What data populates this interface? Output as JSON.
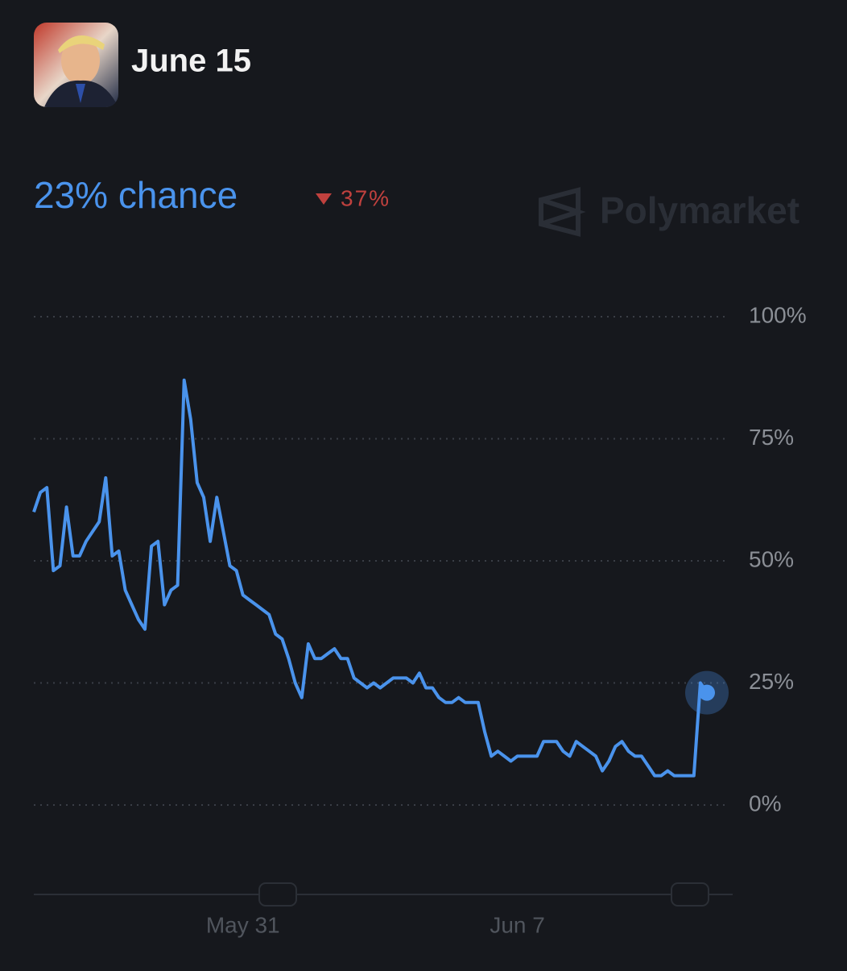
{
  "header": {
    "title": "June 15"
  },
  "chart_data": {
    "type": "line",
    "headline": "23% chance",
    "change": "37%",
    "watermark": "Polymarket",
    "categories": [
      null,
      null,
      null,
      null,
      null,
      null,
      null,
      null,
      null,
      null,
      null,
      null,
      null,
      null,
      null,
      null,
      null,
      null,
      null,
      null,
      null,
      null,
      null,
      null,
      null,
      null,
      null,
      null,
      null,
      null,
      null,
      null,
      "May 31",
      null,
      null,
      null,
      null,
      null,
      null,
      null,
      null,
      null,
      null,
      null,
      null,
      null,
      null,
      null,
      null,
      null,
      null,
      null,
      null,
      null,
      null,
      null,
      null,
      null,
      null,
      null,
      null,
      null,
      null,
      null,
      null,
      null,
      null,
      null,
      null,
      null,
      null,
      null,
      null,
      null,
      "Jun 7",
      null,
      null,
      null,
      null,
      null,
      null,
      null,
      null,
      null,
      null,
      null,
      null,
      null,
      null,
      null,
      null,
      null,
      null,
      null,
      null,
      null,
      null,
      null,
      null,
      null,
      null,
      null,
      null,
      null
    ],
    "values": [
      60,
      64,
      65,
      48,
      49,
      61,
      51,
      51,
      54,
      56,
      58,
      67,
      51,
      52,
      44,
      41,
      38,
      36,
      53,
      54,
      41,
      44,
      45,
      87,
      79,
      66,
      63,
      54,
      63,
      56,
      49,
      48,
      43,
      42,
      41,
      40,
      39,
      35,
      34,
      30,
      25,
      22,
      33,
      30,
      30,
      31,
      32,
      30,
      30,
      26,
      25,
      24,
      25,
      24,
      25,
      26,
      26,
      26,
      25,
      27,
      24,
      24,
      22,
      21,
      21,
      22,
      21,
      21,
      21,
      15,
      10,
      11,
      10,
      9,
      10,
      10,
      10,
      10,
      13,
      13,
      13,
      11,
      10,
      13,
      12,
      11,
      10,
      7,
      9,
      12,
      13,
      11,
      10,
      10,
      8,
      6,
      6,
      7,
      6,
      6,
      6,
      6,
      25,
      23
    ],
    "color": "#4a93ec",
    "ylim": [
      0,
      100
    ],
    "yticks": [
      {
        "value": 0,
        "label": "0%"
      },
      {
        "value": 25,
        "label": "25%"
      },
      {
        "value": 50,
        "label": "50%"
      },
      {
        "value": 75,
        "label": "75%"
      },
      {
        "value": 100,
        "label": "100%"
      }
    ],
    "grid": true
  }
}
